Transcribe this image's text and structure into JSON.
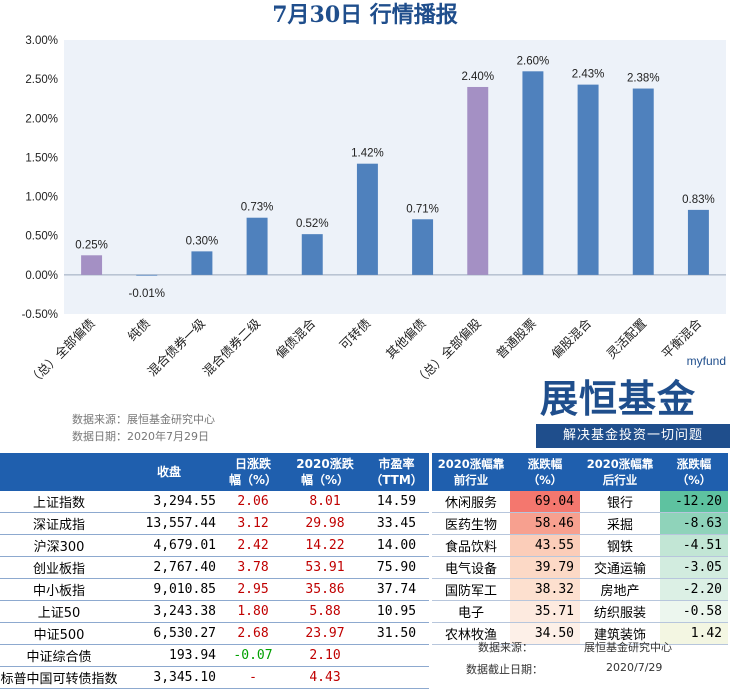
{
  "title": "7月30日  行情播报",
  "chart_data": {
    "type": "bar",
    "categories": [
      "（总）全部偏债",
      "纯债",
      "混合债券一级",
      "混合债券二级",
      "偏债混合",
      "可转债",
      "其他偏债",
      "（总）全部偏股",
      "普通股票",
      "偏股混合",
      "灵活配置",
      "平衡混合"
    ],
    "values": [
      0.25,
      -0.01,
      0.3,
      0.73,
      0.52,
      1.42,
      0.71,
      2.4,
      2.6,
      2.43,
      2.38,
      0.83
    ],
    "value_labels": [
      "0.25%",
      "-0.01%",
      "0.30%",
      "0.73%",
      "0.52%",
      "1.42%",
      "0.71%",
      "2.40%",
      "2.60%",
      "2.43%",
      "2.38%",
      "0.83%"
    ],
    "highlight": [
      true,
      false,
      false,
      false,
      false,
      false,
      false,
      true,
      false,
      false,
      false,
      false
    ],
    "ylim": [
      -0.5,
      3.0
    ],
    "yticks": [
      "-0.50%",
      "0.00%",
      "0.50%",
      "1.00%",
      "1.50%",
      "2.00%",
      "2.50%",
      "3.00%"
    ],
    "ytick_values": [
      -0.5,
      0,
      0.5,
      1.0,
      1.5,
      2.0,
      2.5,
      3.0
    ],
    "colors": {
      "bar": "#4f81bd",
      "highlight": "#a490c4",
      "plot_bg": "#edf2f9"
    }
  },
  "source": {
    "source_line": "数据来源：展恒基金研究中心",
    "date_line": "数据日期：2020年7月29日"
  },
  "logo": {
    "small": "myfund",
    "main": "展恒基金",
    "slogan": "解决基金投资一切问题"
  },
  "index_table": {
    "headers": [
      "",
      "收盘",
      "日涨跌\n幅（%）",
      "2020涨跌\n幅（%）",
      "市盈率\n（TTM）"
    ],
    "rows": [
      {
        "name": "上证指数",
        "close": "3,294.55",
        "day": "2.06",
        "ytd": "8.01",
        "pe": "14.59",
        "day_color": "red",
        "ytd_color": "red"
      },
      {
        "name": "深证成指",
        "close": "13,557.44",
        "day": "3.12",
        "ytd": "29.98",
        "pe": "33.45",
        "day_color": "red",
        "ytd_color": "red"
      },
      {
        "name": "沪深300",
        "close": "4,679.01",
        "day": "2.42",
        "ytd": "14.22",
        "pe": "14.00",
        "day_color": "red",
        "ytd_color": "red"
      },
      {
        "name": "创业板指",
        "close": "2,767.40",
        "day": "3.78",
        "ytd": "53.91",
        "pe": "75.90",
        "day_color": "red",
        "ytd_color": "red"
      },
      {
        "name": "中小板指",
        "close": "9,010.85",
        "day": "2.95",
        "ytd": "35.86",
        "pe": "37.74",
        "day_color": "red",
        "ytd_color": "red"
      },
      {
        "name": "上证50",
        "close": "3,243.38",
        "day": "1.80",
        "ytd": "5.88",
        "pe": "10.95",
        "day_color": "red",
        "ytd_color": "red"
      },
      {
        "name": "中证500",
        "close": "6,530.27",
        "day": "2.68",
        "ytd": "23.97",
        "pe": "31.50",
        "day_color": "red",
        "ytd_color": "red"
      },
      {
        "name": "中证综合债",
        "close": "193.94",
        "day": "-0.07",
        "ytd": "2.10",
        "pe": "",
        "day_color": "green",
        "ytd_color": "red"
      },
      {
        "name": "标普中国可转债指数",
        "close": "3,345.10",
        "day": "-",
        "ytd": "4.43",
        "pe": "",
        "day_color": "red",
        "ytd_color": "red"
      }
    ]
  },
  "industry_table": {
    "headers": [
      "2020涨幅靠\n前行业",
      "涨跌幅\n（%）",
      "2020涨幅靠\n后行业",
      "涨跌幅\n（%）"
    ],
    "rows": [
      {
        "top": "休闲服务",
        "top_val": "69.04",
        "bottom": "银行",
        "bottom_val": "-12.20",
        "top_bg": "#f4776e",
        "bottom_bg": "#5ec2a0"
      },
      {
        "top": "医药生物",
        "top_val": "58.46",
        "bottom": "采掘",
        "bottom_val": "-8.63",
        "top_bg": "#f7a08f",
        "bottom_bg": "#8fd3ba"
      },
      {
        "top": "食品饮料",
        "top_val": "43.55",
        "bottom": "钢铁",
        "bottom_val": "-4.51",
        "top_bg": "#fbcdb9",
        "bottom_bg": "#c2e6d5"
      },
      {
        "top": "电气设备",
        "top_val": "39.79",
        "bottom": "交通运输",
        "bottom_val": "-3.05",
        "top_bg": "#fcd9c6",
        "bottom_bg": "#d2ecdf"
      },
      {
        "top": "国防军工",
        "top_val": "38.32",
        "bottom": "房地产",
        "bottom_val": "-2.20",
        "top_bg": "#fde0cf",
        "bottom_bg": "#dcf0e5"
      },
      {
        "top": "电子",
        "top_val": "35.71",
        "bottom": "纺织服装",
        "bottom_val": "-0.58",
        "top_bg": "#fdeadf",
        "bottom_bg": "#ecf6ee"
      },
      {
        "top": "农林牧渔",
        "top_val": "34.50",
        "bottom": "建筑装饰",
        "bottom_val": "1.42",
        "top_bg": "#fdf0e8",
        "bottom_bg": "#f3f6e2"
      }
    ],
    "source_line": "数据来源：",
    "source_value": "展恒基金研究中心",
    "date_line": "数据截止日期：",
    "date_value": "2020/7/29"
  }
}
